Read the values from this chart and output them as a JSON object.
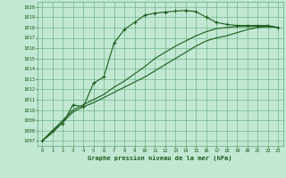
{
  "title": "Graphe pression niveau de la mer (hPa)",
  "bg_color": "#c2e8d4",
  "grid_color": "#5aaa7a",
  "line_color": "#1a5c1a",
  "xlim": [
    -0.5,
    23.5
  ],
  "ylim": [
    1006.5,
    1020.5
  ],
  "xticks": [
    0,
    1,
    2,
    3,
    4,
    5,
    6,
    7,
    8,
    9,
    10,
    11,
    12,
    13,
    14,
    15,
    16,
    17,
    18,
    19,
    20,
    21,
    22,
    23
  ],
  "yticks": [
    1007,
    1008,
    1009,
    1010,
    1011,
    1012,
    1013,
    1014,
    1015,
    1016,
    1017,
    1018,
    1019,
    1020
  ],
  "line1_x": [
    0,
    1,
    2,
    3,
    4,
    5,
    6,
    7,
    8,
    9,
    10,
    11,
    12,
    13,
    14,
    15,
    16,
    17,
    18,
    19,
    20,
    21,
    22,
    23
  ],
  "line1_y": [
    1007.0,
    1008.0,
    1008.7,
    1010.5,
    1010.3,
    1012.6,
    1013.2,
    1016.5,
    1017.8,
    1018.5,
    1019.2,
    1019.4,
    1019.5,
    1019.6,
    1019.65,
    1019.55,
    1019.0,
    1018.5,
    1018.3,
    1018.2,
    1018.2,
    1018.2,
    1018.2,
    1018.0
  ],
  "line2_x": [
    0,
    1,
    2,
    3,
    4,
    5,
    6,
    7,
    8,
    9,
    10,
    11,
    12,
    13,
    14,
    15,
    16,
    17,
    18,
    19,
    20,
    21,
    22,
    23
  ],
  "line2_y": [
    1007.0,
    1007.8,
    1008.8,
    1009.8,
    1010.3,
    1010.7,
    1011.2,
    1011.7,
    1012.2,
    1012.7,
    1013.2,
    1013.8,
    1014.4,
    1015.0,
    1015.6,
    1016.2,
    1016.7,
    1017.0,
    1017.2,
    1017.5,
    1017.8,
    1018.0,
    1018.1,
    1018.0
  ],
  "line3_x": [
    0,
    1,
    2,
    3,
    4,
    5,
    6,
    7,
    8,
    9,
    10,
    11,
    12,
    13,
    14,
    15,
    16,
    17,
    18,
    19,
    20,
    21,
    22,
    23
  ],
  "line3_y": [
    1007.0,
    1008.0,
    1009.0,
    1010.0,
    1010.5,
    1011.0,
    1011.5,
    1012.2,
    1012.8,
    1013.5,
    1014.2,
    1015.0,
    1015.6,
    1016.2,
    1016.7,
    1017.2,
    1017.6,
    1017.9,
    1018.0,
    1018.1,
    1018.1,
    1018.1,
    1018.1,
    1018.0
  ]
}
